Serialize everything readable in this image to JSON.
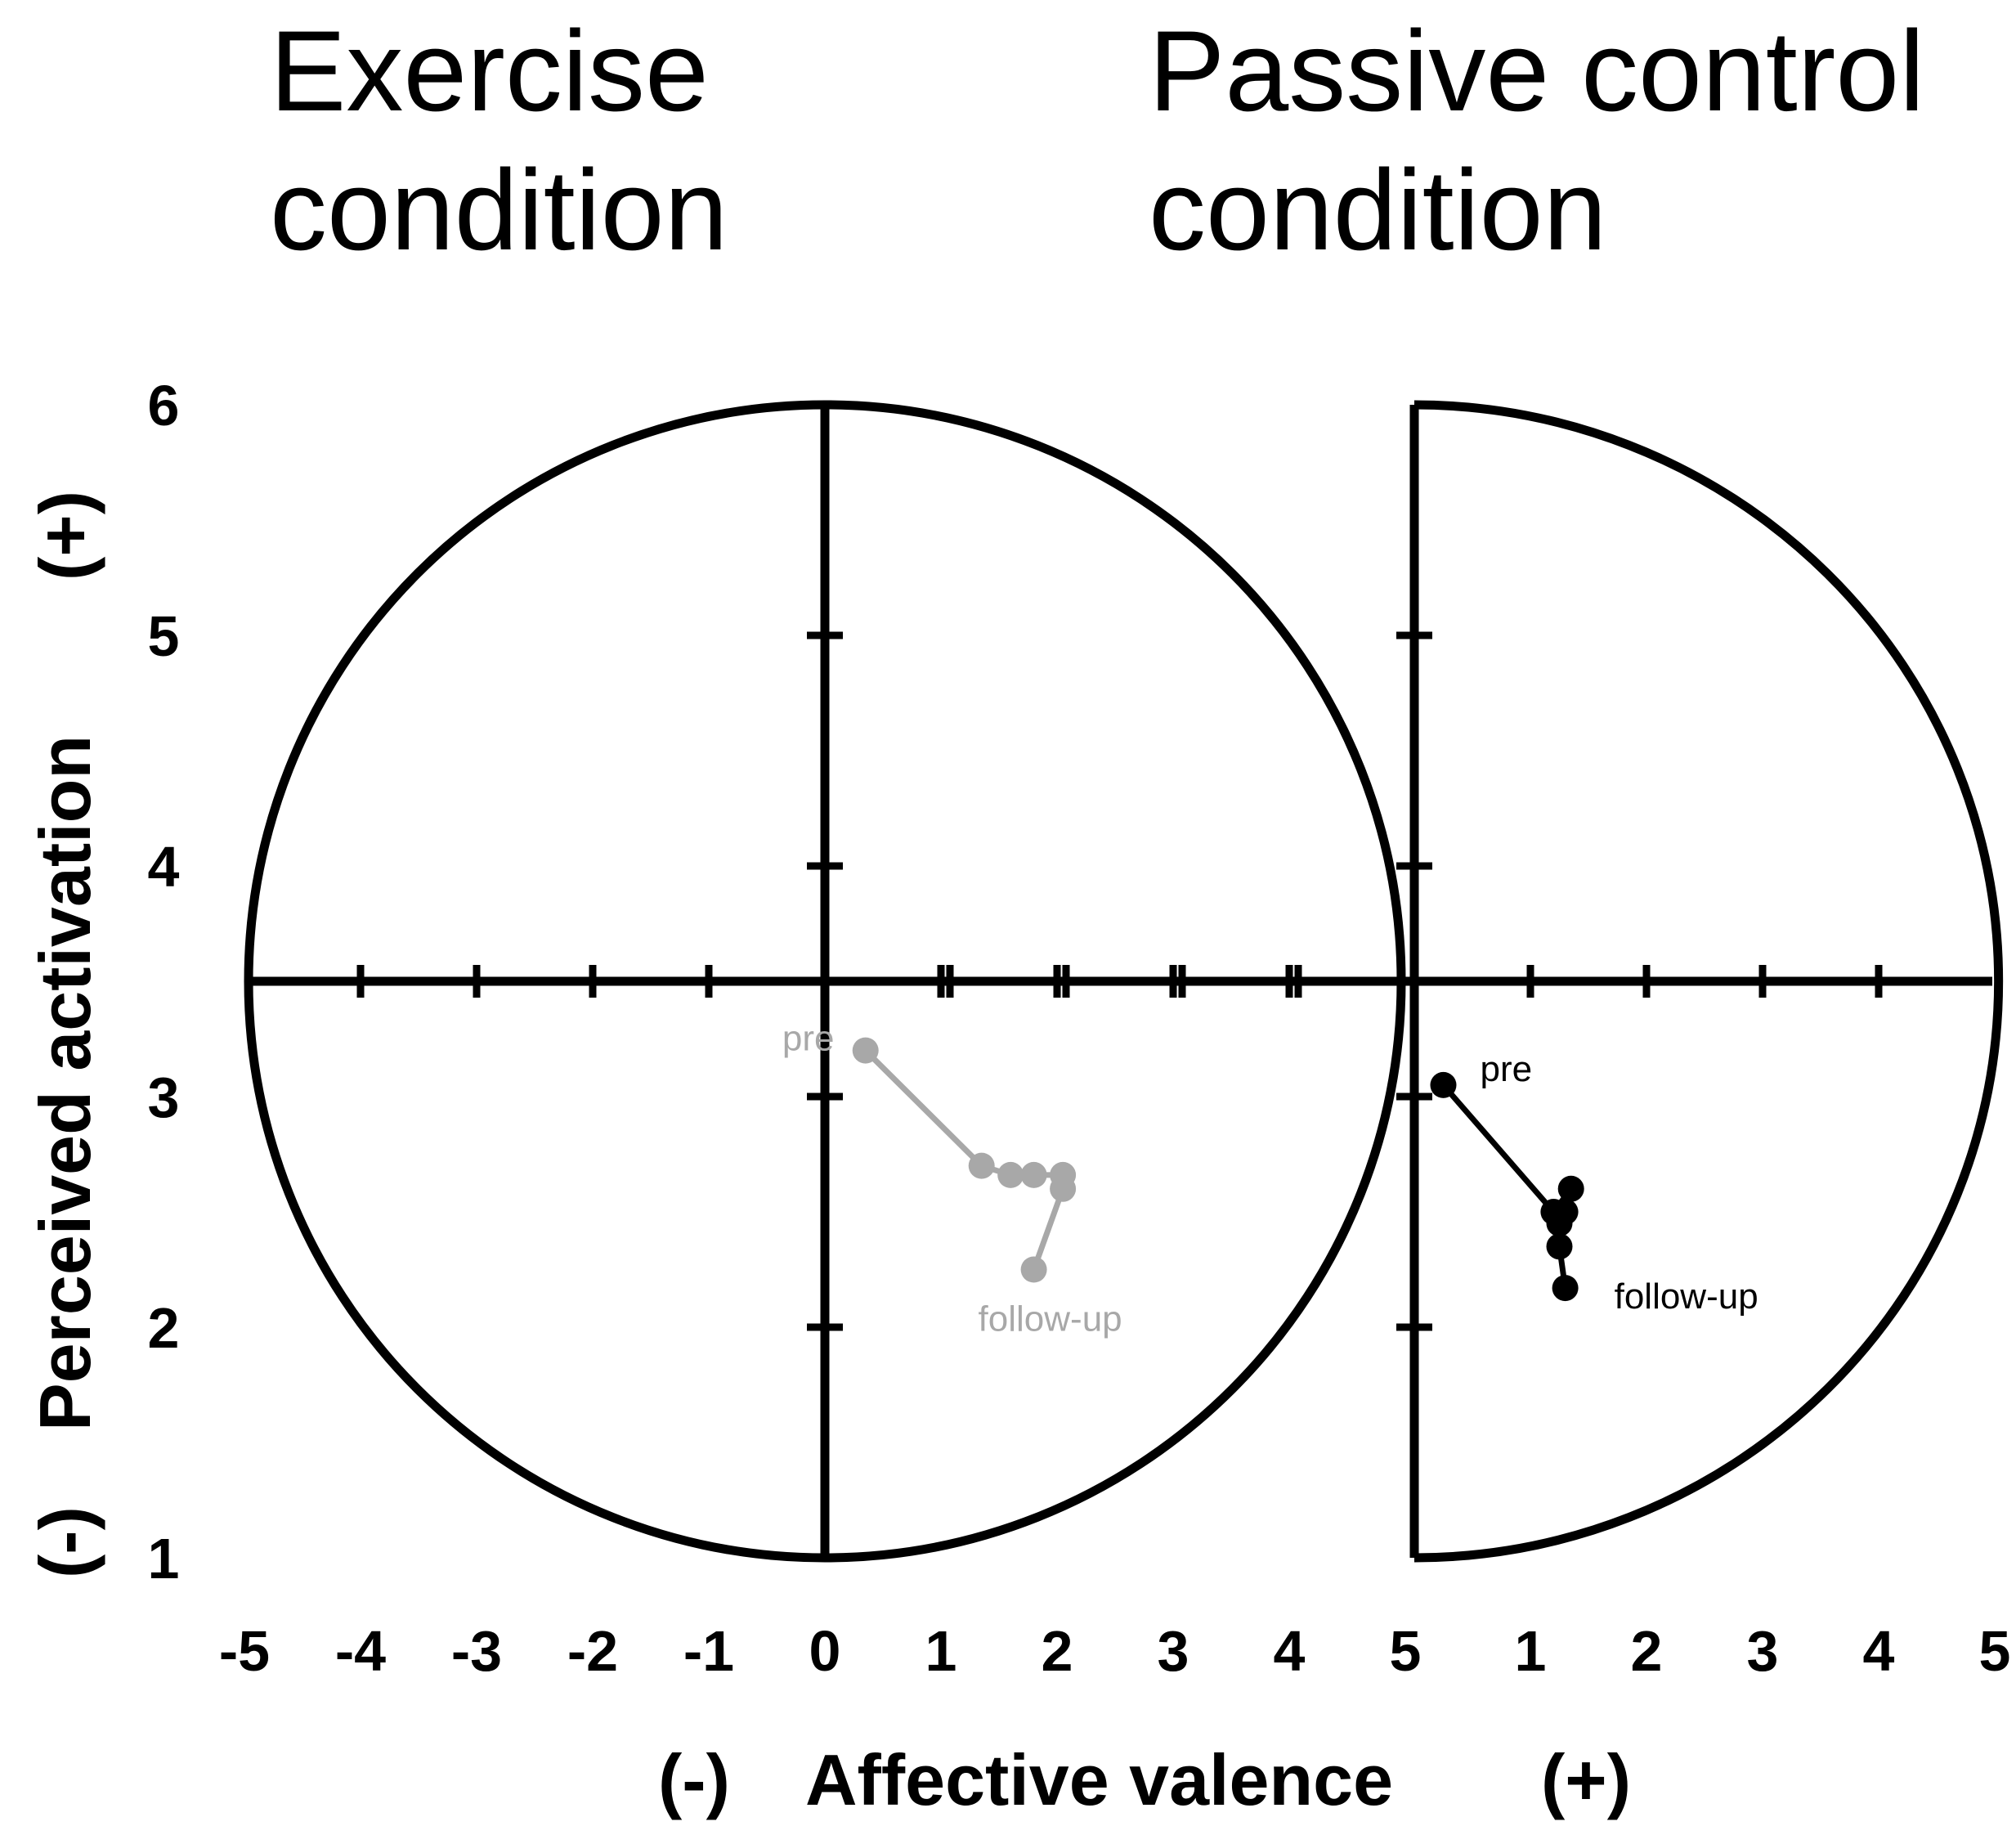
{
  "chart_data": {
    "type": "scatter",
    "panel_titles": [
      [
        "Exercise",
        "condition"
      ],
      [
        "Passive control",
        "condition"
      ]
    ],
    "xlabel": "Affective valence",
    "xlabel_neg": "(-)",
    "xlabel_pos": "(+)",
    "ylabel": "Perceived activation",
    "ylabel_neg": "(-)",
    "ylabel_pos": "(+)",
    "x_tick_labels": [
      "-5",
      "-4",
      "-3",
      "-2",
      "-1",
      "0",
      "1",
      "2",
      "3",
      "4",
      "5",
      "1",
      "2",
      "3",
      "4",
      "5"
    ],
    "y_ticks": [
      6,
      5,
      4,
      3,
      2,
      1
    ],
    "xlim": [
      -5,
      5
    ],
    "ylim": [
      1,
      6
    ],
    "colors": {
      "exercise": "#a8a8a8",
      "control": "#000000",
      "frame": "#000000"
    },
    "series": [
      {
        "points": [
          {
            "x": 0.35,
            "y": 3.2
          },
          {
            "x": 1.35,
            "y": 2.7
          },
          {
            "x": 1.6,
            "y": 2.66
          },
          {
            "x": 1.8,
            "y": 2.66
          },
          {
            "x": 2.05,
            "y": 2.66
          },
          {
            "x": 2.05,
            "y": 2.6
          },
          {
            "x": 1.8,
            "y": 2.25
          }
        ],
        "start_label": "pre",
        "end_label": "follow-up"
      },
      {
        "points": [
          {
            "x": 0.25,
            "y": 3.05
          },
          {
            "x": 1.2,
            "y": 2.5
          },
          {
            "x": 1.35,
            "y": 2.6
          },
          {
            "x": 1.3,
            "y": 2.5
          },
          {
            "x": 1.25,
            "y": 2.45
          },
          {
            "x": 1.25,
            "y": 2.35
          },
          {
            "x": 1.3,
            "y": 2.17
          }
        ],
        "start_label": "pre",
        "end_label": "follow-up"
      }
    ]
  }
}
